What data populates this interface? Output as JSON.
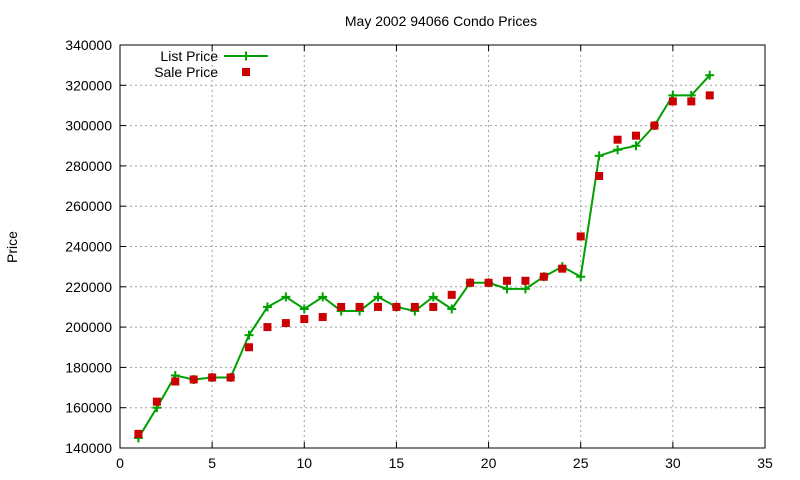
{
  "chart_data": {
    "type": "line",
    "title": "May 2002 94066 Condo Prices",
    "xlabel": "",
    "ylabel": "Price",
    "xlim": [
      0,
      35
    ],
    "ylim": [
      140000,
      340000
    ],
    "x_ticks": [
      0,
      5,
      10,
      15,
      20,
      25,
      30,
      35
    ],
    "y_ticks": [
      140000,
      160000,
      180000,
      200000,
      220000,
      240000,
      260000,
      280000,
      300000,
      320000,
      340000
    ],
    "grid": true,
    "legend_position": "top-left",
    "series": [
      {
        "name": "List Price",
        "style": "line-with-plus-markers",
        "color": "#00a000",
        "x": [
          1,
          2,
          3,
          4,
          5,
          6,
          7,
          8,
          9,
          10,
          11,
          12,
          13,
          14,
          15,
          16,
          17,
          18,
          19,
          20,
          21,
          22,
          23,
          24,
          25,
          26,
          27,
          28,
          29,
          30,
          31,
          32
        ],
        "values": [
          145000,
          160000,
          176000,
          174000,
          175000,
          175000,
          196000,
          210000,
          215000,
          209000,
          215000,
          208000,
          208000,
          215000,
          210000,
          208000,
          215000,
          209000,
          222000,
          222000,
          219000,
          219000,
          225000,
          230000,
          225000,
          285000,
          288000,
          290000,
          300000,
          315000,
          315000,
          325000
        ]
      },
      {
        "name": "Sale Price",
        "style": "square-markers",
        "color": "#cc0000",
        "x": [
          1,
          2,
          3,
          4,
          5,
          6,
          7,
          8,
          9,
          10,
          11,
          12,
          13,
          14,
          15,
          16,
          17,
          18,
          19,
          20,
          21,
          22,
          23,
          24,
          25,
          26,
          27,
          28,
          29,
          30,
          31,
          32
        ],
        "values": [
          147000,
          163000,
          173000,
          174000,
          175000,
          175000,
          190000,
          200000,
          202000,
          204000,
          205000,
          210000,
          210000,
          210000,
          210000,
          210000,
          210000,
          216000,
          222000,
          222000,
          223000,
          223000,
          225000,
          229000,
          245000,
          275000,
          293000,
          295000,
          300000,
          312000,
          312000,
          315000
        ]
      }
    ]
  }
}
